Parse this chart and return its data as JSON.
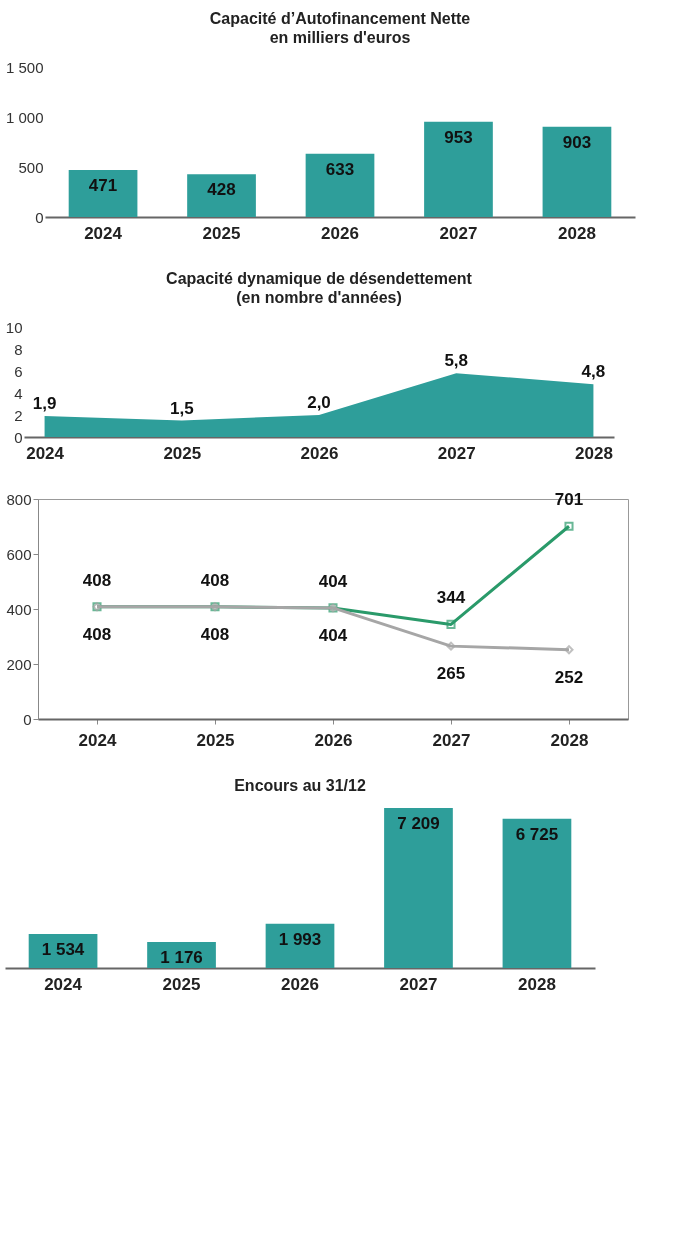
{
  "chart_data": [
    {
      "type": "bar",
      "title": "Capacité d’Autofinancement Nette",
      "subtitle": "en milliers d'euros",
      "categories": [
        "2024",
        "2025",
        "2026",
        "2027",
        "2028"
      ],
      "values": [
        471,
        428,
        633,
        953,
        903
      ],
      "color": "#2e9e9a",
      "ylim": [
        0,
        1500
      ],
      "yticks": [
        0,
        500,
        {
          "value": 1000,
          "label": "1 000"
        },
        {
          "value": 1500,
          "label": "1 500"
        }
      ],
      "data_labels": true
    },
    {
      "type": "area",
      "title": "Capacité dynamique de désendettement",
      "subtitle": "(en nombre d'années)",
      "categories": [
        "2024",
        "2025",
        "2026",
        "2027",
        "2028"
      ],
      "values": [
        1.9,
        1.5,
        2.0,
        5.8,
        4.8
      ],
      "value_labels": [
        "1,9",
        "1,5",
        "2,0",
        "5,8",
        "4,8"
      ],
      "color": "#2e9e9a",
      "ylim": [
        0,
        10
      ],
      "yticks": [
        0,
        2,
        4,
        6,
        8,
        10
      ]
    },
    {
      "type": "line",
      "categories": [
        "2024",
        "2025",
        "2026",
        "2027",
        "2028"
      ],
      "ylim": [
        0,
        800
      ],
      "yticks": [
        0,
        200,
        400,
        600,
        800
      ],
      "data_labels": true,
      "series": [
        {
          "color": "#2a9a6a",
          "marker": "square",
          "values": [
            408,
            408,
            404,
            344,
            701
          ]
        },
        {
          "color": "#a6a6a6",
          "marker": "diamond",
          "values": [
            408,
            408,
            404,
            265,
            252
          ]
        }
      ]
    },
    {
      "type": "bar",
      "title": "Encours au 31/12",
      "categories": [
        "2024",
        "2025",
        "2026",
        "2027",
        "2028"
      ],
      "values": [
        1534,
        1176,
        1993,
        7209,
        6725
      ],
      "value_labels": [
        "1 534",
        "1 176",
        "1 993",
        "7 209",
        "6 725"
      ],
      "color": "#2e9e9a",
      "tick_labels": "x"
    }
  ]
}
